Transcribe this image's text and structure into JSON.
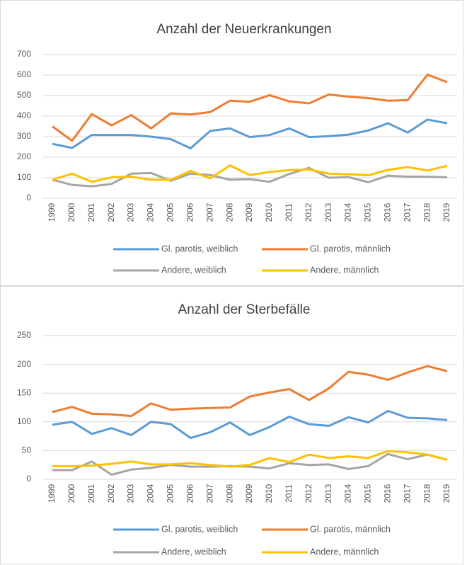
{
  "chart_data": [
    {
      "type": "line",
      "title": "Anzahl der Neuerkrankungen",
      "categories": [
        "1999",
        "2000",
        "2001",
        "2002",
        "2003",
        "2004",
        "2005",
        "2006",
        "2007",
        "2008",
        "2009",
        "2010",
        "2011",
        "2012",
        "2013",
        "2014",
        "2015",
        "2016",
        "2017",
        "2018",
        "2019"
      ],
      "ylim": [
        0,
        700
      ],
      "yticks": [
        0,
        100,
        200,
        300,
        400,
        500,
        600,
        700
      ],
      "series": [
        {
          "name": "Gl. parotis, weiblich",
          "color": "#5b9bd5",
          "values": [
            265,
            245,
            308,
            308,
            308,
            300,
            288,
            243,
            328,
            340,
            298,
            308,
            340,
            298,
            302,
            310,
            330,
            365,
            320,
            383,
            365
          ]
        },
        {
          "name": "Gl. parotis, männlich",
          "color": "#ed7d31",
          "values": [
            350,
            280,
            410,
            355,
            405,
            340,
            413,
            408,
            420,
            475,
            470,
            502,
            472,
            462,
            505,
            495,
            488,
            475,
            478,
            602,
            565
          ]
        },
        {
          "name": "Andere, weiblich",
          "color": "#a5a5a5",
          "values": [
            90,
            65,
            58,
            70,
            120,
            123,
            85,
            120,
            113,
            90,
            93,
            80,
            118,
            148,
            100,
            103,
            78,
            110,
            105,
            105,
            102
          ]
        },
        {
          "name": "Andere, männlich",
          "color": "#ffc000",
          "values": [
            90,
            120,
            80,
            102,
            105,
            90,
            90,
            133,
            97,
            160,
            113,
            128,
            137,
            140,
            120,
            117,
            112,
            138,
            152,
            135,
            158
          ]
        }
      ]
    },
    {
      "type": "line",
      "title": "Anzahl der Sterbefälle",
      "categories": [
        "1999",
        "2000",
        "2001",
        "2002",
        "2003",
        "2004",
        "2005",
        "2006",
        "2007",
        "2008",
        "2009",
        "2010",
        "2011",
        "2012",
        "2013",
        "2014",
        "2015",
        "2016",
        "2017",
        "2018",
        "2019"
      ],
      "ylim": [
        0,
        250
      ],
      "yticks": [
        0,
        50,
        100,
        150,
        200,
        250
      ],
      "series": [
        {
          "name": "Gl. parotis, weiblich",
          "color": "#5b9bd5",
          "values": [
            95,
            100,
            79,
            89,
            77,
            100,
            96,
            72,
            82,
            99,
            77,
            91,
            109,
            96,
            93,
            108,
            99,
            119,
            107,
            106,
            103
          ]
        },
        {
          "name": "Gl. parotis, männlich",
          "color": "#ed7d31",
          "values": [
            117,
            126,
            114,
            113,
            110,
            132,
            121,
            123,
            124,
            125,
            144,
            151,
            157,
            138,
            158,
            187,
            182,
            173,
            186,
            197,
            188
          ]
        },
        {
          "name": "Andere, weiblich",
          "color": "#a5a5a5",
          "values": [
            16,
            16,
            31,
            8,
            17,
            20,
            25,
            22,
            22,
            23,
            22,
            19,
            28,
            25,
            26,
            18,
            23,
            44,
            35,
            43,
            34
          ]
        },
        {
          "name": "Andere, männlich",
          "color": "#ffc000",
          "values": [
            23,
            23,
            24,
            27,
            31,
            26,
            26,
            28,
            25,
            22,
            25,
            37,
            30,
            43,
            37,
            40,
            37,
            49,
            47,
            43,
            34
          ]
        }
      ]
    }
  ]
}
